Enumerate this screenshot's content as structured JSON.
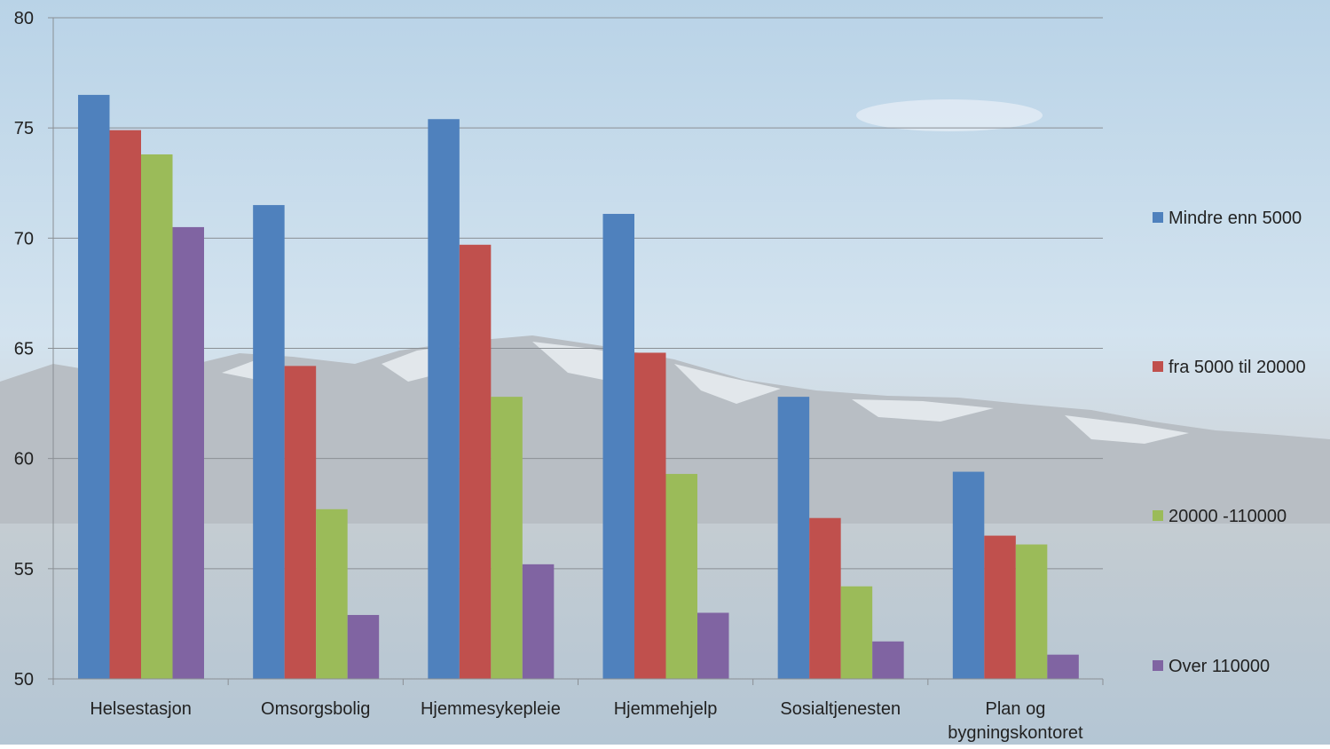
{
  "chart_data": {
    "type": "bar",
    "categories": [
      "Helsestasjon",
      "Omsorgsbolig",
      "Hjemmesykepleie",
      "Hjemmehjelp",
      "Sosialtjenesten",
      "Plan og bygningskontoret"
    ],
    "category_lines": [
      [
        "Helsestasjon"
      ],
      [
        "Omsorgsbolig"
      ],
      [
        "Hjemmesykepleie"
      ],
      [
        "Hjemmehjelp"
      ],
      [
        "Sosialtjenesten"
      ],
      [
        "Plan og",
        "bygningskontoret"
      ]
    ],
    "series": [
      {
        "name": "Mindre enn 5000",
        "color": "#4F81BD",
        "values": [
          76.5,
          71.5,
          75.4,
          71.1,
          62.8,
          59.4
        ]
      },
      {
        "name": "fra 5000 til 20000",
        "color": "#C0504D",
        "values": [
          74.9,
          64.2,
          69.7,
          64.8,
          57.3,
          56.5
        ]
      },
      {
        "name": "20000 -110000",
        "color": "#9BBB59",
        "values": [
          73.8,
          57.7,
          62.8,
          59.3,
          54.2,
          56.1
        ]
      },
      {
        "name": "Over 110000",
        "color": "#8064A2",
        "values": [
          70.5,
          52.9,
          55.2,
          53.0,
          51.7,
          51.1
        ]
      }
    ],
    "yticks": [
      50,
      55,
      60,
      65,
      70,
      75,
      80
    ],
    "ylim": [
      50,
      80
    ],
    "title": "",
    "xlabel": "",
    "ylabel": "",
    "grid": true,
    "legend_position": "right"
  }
}
